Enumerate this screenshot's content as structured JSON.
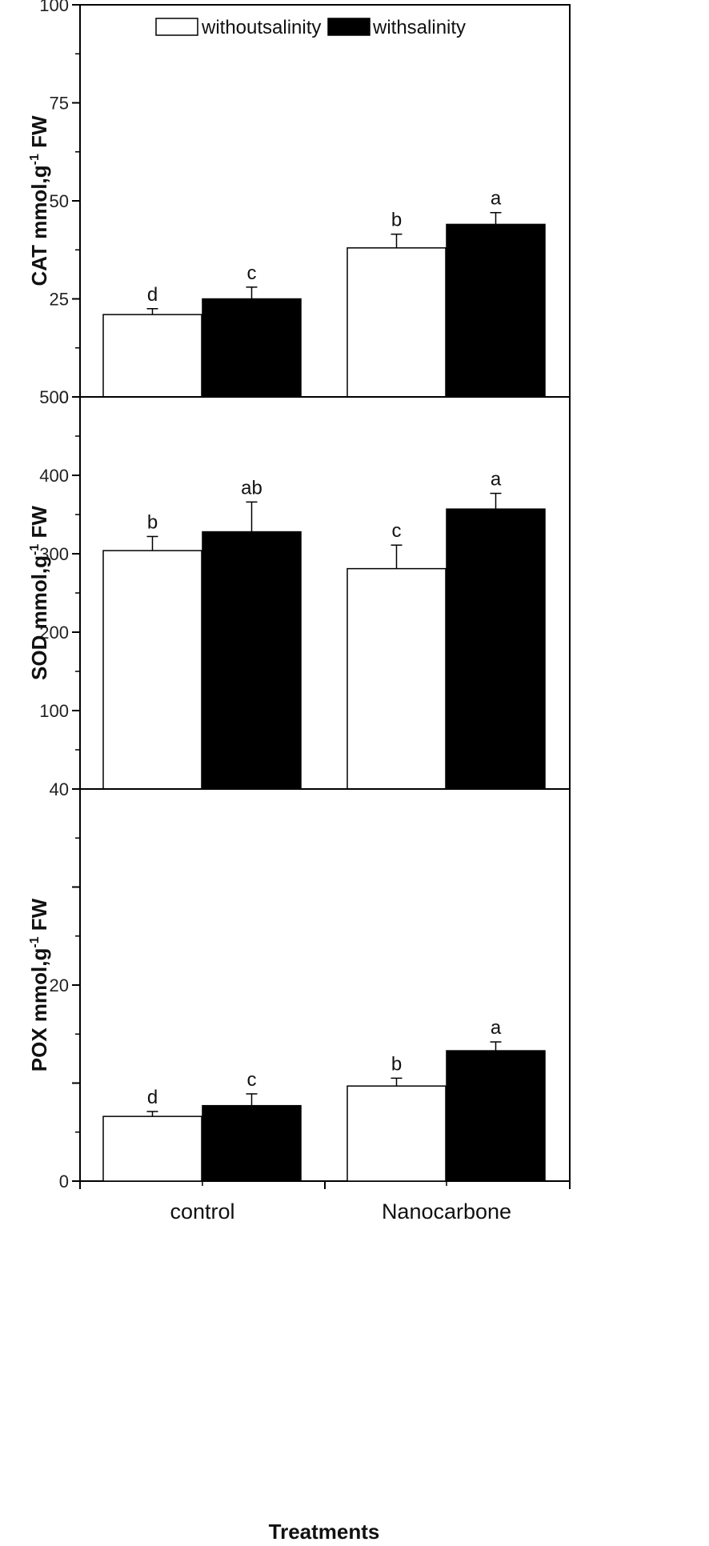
{
  "chart_data": [
    {
      "type": "bar",
      "categories": [
        "control",
        "Nanocarbone"
      ],
      "ylim": [
        0,
        100
      ],
      "yticks": [
        "0",
        "25",
        "50",
        "75",
        "100"
      ],
      "ylabel": {
        "main": "CAT mmol,g",
        "sup": "-1",
        "tail": " FW"
      },
      "series": [
        {
          "name": "withoutsalinity",
          "color": "#ffffff",
          "values": [
            21,
            38
          ],
          "errors": [
            1.5,
            3.5
          ],
          "letters": [
            "d",
            "b"
          ]
        },
        {
          "name": "withsalinity",
          "color": "#000000",
          "values": [
            25,
            44
          ],
          "errors": [
            3,
            3
          ],
          "letters": [
            "c",
            "a"
          ]
        }
      ],
      "legend": "top-center"
    },
    {
      "type": "bar",
      "categories": [
        "control",
        "Nanocarbone"
      ],
      "ylim": [
        0,
        500
      ],
      "yticks": [
        "",
        "100",
        "200",
        "300",
        "400",
        "500"
      ],
      "ylabel": {
        "main": "SOD mmol,g",
        "sup": "-1",
        "tail": " FW"
      },
      "series": [
        {
          "name": "withoutsalinity",
          "color": "#ffffff",
          "values": [
            304,
            281
          ],
          "errors": [
            18,
            30
          ],
          "letters": [
            "b",
            "c"
          ]
        },
        {
          "name": "withsalinity",
          "color": "#000000",
          "values": [
            328,
            357
          ],
          "errors": [
            38,
            20
          ],
          "letters": [
            "ab",
            "a"
          ]
        }
      ]
    },
    {
      "type": "bar",
      "categories": [
        "control",
        "Nanocarbone"
      ],
      "ylim": [
        0,
        40
      ],
      "yticks": [
        "0",
        "",
        "20",
        "",
        "40"
      ],
      "ylabel": {
        "main": "POX mmol,g",
        "sup": "-1",
        "tail": " FW"
      },
      "xlabel": "Treatments",
      "series": [
        {
          "name": "withoutsalinity",
          "color": "#ffffff",
          "values": [
            6.6,
            9.7
          ],
          "errors": [
            0.5,
            0.8
          ],
          "letters": [
            "d",
            "b"
          ]
        },
        {
          "name": "withsalinity",
          "color": "#000000",
          "values": [
            7.7,
            13.3
          ],
          "errors": [
            1.2,
            0.9
          ],
          "letters": [
            "c",
            "a"
          ]
        }
      ]
    }
  ]
}
